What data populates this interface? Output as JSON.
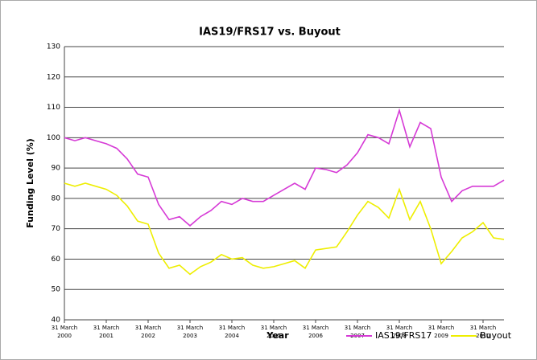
{
  "chart_data": {
    "type": "line",
    "title": "IAS19/FRS17 vs. Buyout",
    "x_label": "Year",
    "y_label": "Funding Level (%)",
    "categories": [
      "31 March 2000",
      null,
      null,
      null,
      "31 March 2001",
      null,
      null,
      null,
      "31 March 2002",
      null,
      null,
      null,
      "31 March 2003",
      null,
      null,
      null,
      "31 March 2004",
      null,
      null,
      null,
      "31 March 2005",
      null,
      null,
      null,
      "31 March 2006",
      null,
      null,
      null,
      "31 March 2007",
      null,
      null,
      null,
      "31 March 2008",
      null,
      null,
      null,
      "31 March 2009",
      null,
      null,
      null,
      "31 March 2010",
      null,
      null
    ],
    "series": [
      {
        "name": "IAS19/FRS17",
        "color": "#d63ad6",
        "values": [
          100,
          99,
          100,
          99,
          98,
          96.5,
          93,
          88,
          87,
          78,
          73,
          74,
          71,
          74,
          76,
          79,
          78,
          80,
          79,
          79,
          81,
          83,
          85,
          83,
          90,
          89.5,
          88.5,
          91,
          95,
          101,
          100,
          98,
          109,
          97,
          105,
          103,
          87,
          79,
          82.5,
          84,
          84,
          84,
          86
        ]
      },
      {
        "name": "Buyout",
        "color": "#eeee00",
        "values": [
          85,
          84,
          85,
          84,
          83,
          81,
          77.5,
          72.5,
          71.5,
          62,
          57,
          58,
          55,
          57.5,
          59,
          61.5,
          60,
          60.5,
          58,
          57,
          57.5,
          58.5,
          59.5,
          57,
          63,
          63.5,
          64,
          69,
          74.5,
          79,
          77,
          73.5,
          83,
          73,
          79,
          70,
          58.5,
          62.5,
          67,
          69,
          72,
          67,
          66.5
        ]
      }
    ],
    "ylim": [
      40,
      130
    ],
    "yticks": [
      40,
      50,
      60,
      70,
      80,
      90,
      100,
      110,
      120,
      130
    ],
    "grid": true,
    "legend": "bottom"
  }
}
